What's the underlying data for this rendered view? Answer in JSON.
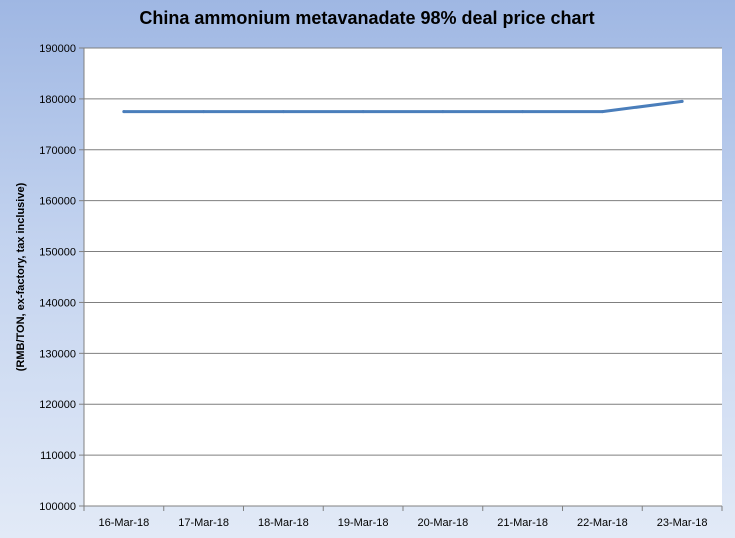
{
  "chart_data": {
    "type": "line",
    "title": "China ammonium metavanadate 98% deal price chart",
    "xlabel": "",
    "ylabel": "(RMB/TON, ex-factory, tax inclusive)",
    "categories": [
      "16-Mar-18",
      "17-Mar-18",
      "18-Mar-18",
      "19-Mar-18",
      "20-Mar-18",
      "21-Mar-18",
      "22-Mar-18",
      "23-Mar-18"
    ],
    "series": [
      {
        "values": [
          177500,
          177500,
          177500,
          177500,
          177500,
          177500,
          177500,
          179500
        ]
      }
    ],
    "ylim": [
      100000,
      190000
    ],
    "yticks": [
      "100000",
      "110000",
      "120000",
      "130000",
      "140000",
      "150000",
      "160000",
      "170000",
      "180000",
      "190000"
    ],
    "grid": true,
    "legend": "none",
    "colors": {
      "line": "#4a7ebb",
      "plot_background": "#ffffff",
      "gridline": "#7f7f7f"
    }
  }
}
